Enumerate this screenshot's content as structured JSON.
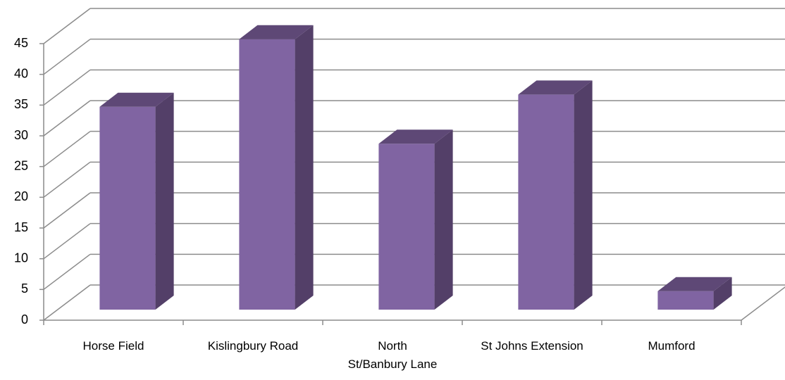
{
  "chart_data": {
    "type": "bar3d",
    "categories": [
      "Horse Field",
      "Kislingbury Road",
      "North St/Banbury Lane",
      "St Johns Extension",
      "Mumford"
    ],
    "values": [
      33,
      44,
      27,
      35,
      3
    ],
    "color": "#8064a2",
    "ylim": [
      0,
      45
    ],
    "yticks": [
      0,
      5,
      10,
      15,
      20,
      25,
      30,
      35,
      40,
      45
    ],
    "grid": true
  }
}
